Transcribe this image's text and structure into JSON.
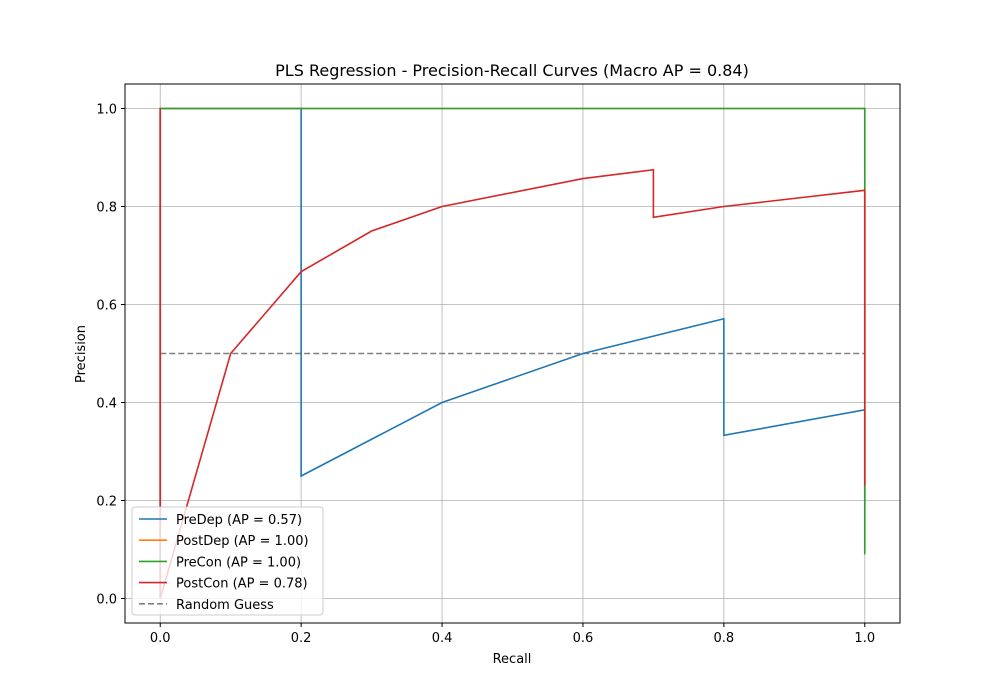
{
  "chart_data": {
    "type": "line",
    "title": "PLS Regression - Precision-Recall Curves (Macro AP = 0.84)",
    "xlabel": "Recall",
    "ylabel": "Precision",
    "xlim": [
      -0.05,
      1.05
    ],
    "ylim": [
      -0.05,
      1.05
    ],
    "xticks": [
      0.0,
      0.2,
      0.4,
      0.6,
      0.8,
      1.0
    ],
    "xtick_labels": [
      "0.0",
      "0.2",
      "0.4",
      "0.6",
      "0.8",
      "1.0"
    ],
    "yticks": [
      0.0,
      0.2,
      0.4,
      0.6,
      0.8,
      1.0
    ],
    "ytick_labels": [
      "0.0",
      "0.2",
      "0.4",
      "0.6",
      "0.8",
      "1.0"
    ],
    "grid": true,
    "legend_position": "lower-left",
    "series": [
      {
        "name": "PreDep (AP = 0.57)",
        "color": "#1f77b4",
        "dashed": false,
        "x": [
          0.0,
          0.0,
          0.2,
          0.2,
          0.4,
          0.6,
          0.8,
          0.8,
          1.0,
          1.0
        ],
        "y": [
          0.0,
          1.0,
          1.0,
          0.25,
          0.4,
          0.5,
          0.571,
          0.333,
          0.385,
          0.2
        ]
      },
      {
        "name": "PostDep (AP = 1.00)",
        "color": "#ff7f0e",
        "dashed": false,
        "x": [
          0.0,
          0.0,
          1.0,
          1.0
        ],
        "y": [
          0.0,
          1.0,
          1.0,
          0.1
        ]
      },
      {
        "name": "PreCon (AP = 1.00)",
        "color": "#2ca02c",
        "dashed": false,
        "x": [
          0.0,
          0.0,
          1.0,
          1.0
        ],
        "y": [
          0.0,
          1.0,
          1.0,
          0.09
        ]
      },
      {
        "name": "PostCon (AP = 0.78)",
        "color": "#d62728",
        "dashed": false,
        "x": [
          0.0,
          0.0,
          0.0,
          0.1,
          0.2,
          0.3,
          0.4,
          0.6,
          0.7,
          0.7,
          0.8,
          1.0,
          1.0
        ],
        "y": [
          0.0,
          1.0,
          0.0,
          0.5,
          0.667,
          0.75,
          0.8,
          0.857,
          0.875,
          0.778,
          0.8,
          0.833,
          0.23
        ]
      },
      {
        "name": "Random Guess",
        "color": "#808080",
        "dashed": true,
        "x": [
          0.0,
          1.0
        ],
        "y": [
          0.5,
          0.5
        ]
      }
    ]
  }
}
